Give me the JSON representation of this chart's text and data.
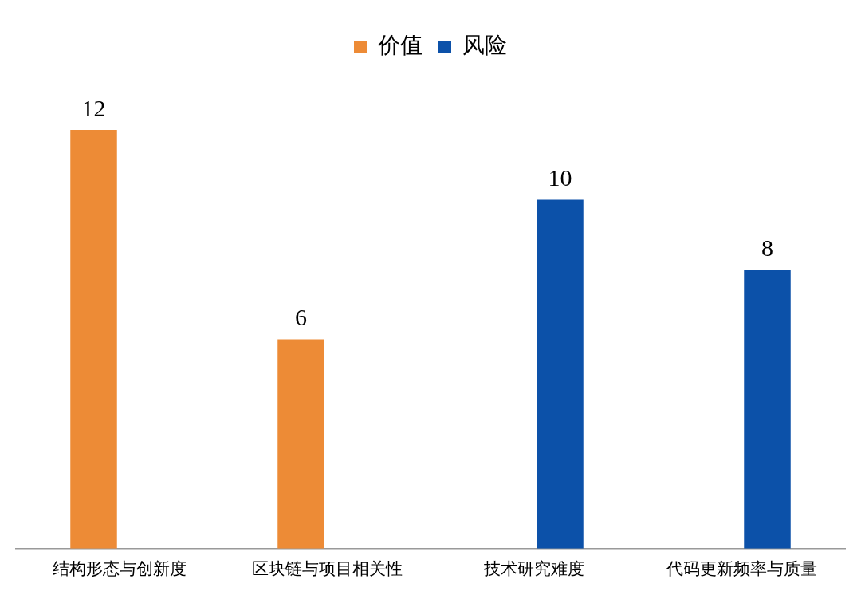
{
  "chart_data": {
    "type": "bar",
    "categories": [
      "结构形态与创新度",
      "区块链与项目相关性",
      "技术研究难度",
      "代码更新频率与质量"
    ],
    "series": [
      {
        "name": "价值",
        "color": "#ed8b36",
        "values": [
          12,
          6,
          null,
          null
        ]
      },
      {
        "name": "风险",
        "color": "#0c51a9",
        "values": [
          null,
          null,
          10,
          8
        ]
      }
    ],
    "data_labels": true,
    "legend": "top",
    "grid": false
  }
}
